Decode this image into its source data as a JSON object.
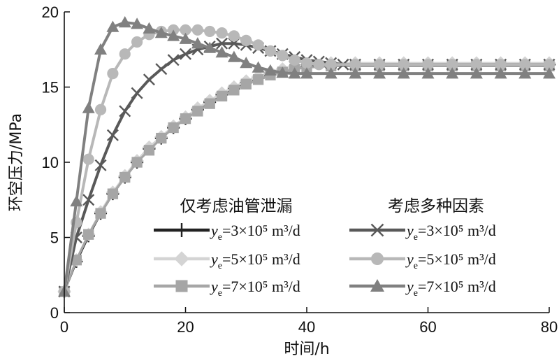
{
  "chart_data": {
    "type": "line",
    "xlabel": "时间/h",
    "ylabel": "环空压力/MPa",
    "xlim": [
      0,
      80
    ],
    "ylim": [
      0,
      20
    ],
    "xticks": [
      0,
      20,
      40,
      60,
      80
    ],
    "yticks": [
      0,
      5,
      10,
      15,
      20
    ],
    "x_tick_labels": [
      "0",
      "20",
      "40",
      "60",
      "80"
    ],
    "y_tick_labels": [
      "0",
      "5",
      "10",
      "15",
      "20"
    ],
    "grid": false,
    "legend": {
      "placement": "bottom-right",
      "group_titles": [
        "仅考虑油管泄漏",
        "考虑多种因素"
      ]
    },
    "series": [
      {
        "key": "s1",
        "name": "ye=3×10⁵ m³/d",
        "name_sym": "y",
        "name_sub": "e",
        "name_rest": "=3×10⁵ m³/d",
        "group": 0,
        "marker": "plus",
        "color": "#222222",
        "markevery": 1,
        "x": [
          0,
          2,
          4,
          6,
          8,
          10,
          12,
          14,
          16,
          18,
          20,
          22,
          24,
          26,
          28,
          30,
          32,
          34,
          36,
          38,
          40,
          44,
          48,
          52,
          56,
          60,
          64,
          68,
          72,
          76,
          80
        ],
        "y": [
          1.4,
          3.4,
          5.1,
          6.6,
          7.9,
          9.0,
          10.0,
          10.9,
          11.6,
          12.3,
          12.9,
          13.5,
          14.0,
          14.5,
          14.9,
          15.3,
          15.6,
          15.9,
          16.1,
          16.3,
          16.4,
          16.5,
          16.5,
          16.5,
          16.5,
          16.5,
          16.5,
          16.5,
          16.5,
          16.5,
          16.5
        ]
      },
      {
        "key": "s2",
        "name": "ye=5×10⁵ m³/d",
        "name_sym": "y",
        "name_sub": "e",
        "name_rest": "=5×10⁵ m³/d",
        "group": 0,
        "marker": "diamond",
        "color": "#d4d4d4",
        "markevery": 1,
        "x": [
          0,
          2,
          4,
          6,
          8,
          10,
          12,
          14,
          16,
          18,
          20,
          22,
          24,
          26,
          28,
          30,
          32,
          34,
          36,
          38,
          40,
          44,
          48,
          52,
          56,
          60,
          64,
          68,
          72,
          76,
          80
        ],
        "y": [
          1.4,
          3.5,
          5.2,
          6.7,
          8.0,
          9.1,
          10.1,
          11.0,
          11.7,
          12.4,
          13.0,
          13.6,
          14.1,
          14.6,
          15.0,
          15.4,
          15.7,
          16.0,
          16.2,
          16.4,
          16.5,
          16.6,
          16.6,
          16.6,
          16.6,
          16.6,
          16.6,
          16.6,
          16.6,
          16.6,
          16.6
        ]
      },
      {
        "key": "s3",
        "name": "ye=7×10⁵ m³/d",
        "name_sym": "y",
        "name_sub": "e",
        "name_rest": "=7×10⁵ m³/d",
        "group": 0,
        "marker": "square",
        "color": "#a6a6a6",
        "markevery": 1,
        "x": [
          0,
          2,
          4,
          6,
          8,
          10,
          12,
          14,
          16,
          18,
          20,
          22,
          24,
          26,
          28,
          30,
          32,
          34,
          36,
          38,
          40,
          44,
          48,
          52,
          56,
          60,
          64,
          68,
          72,
          76,
          80
        ],
        "y": [
          1.4,
          3.5,
          5.2,
          6.6,
          7.9,
          9.0,
          10.0,
          10.8,
          11.6,
          12.3,
          12.9,
          13.4,
          13.9,
          14.4,
          14.8,
          15.2,
          15.5,
          15.8,
          16.0,
          16.2,
          16.3,
          16.4,
          16.4,
          16.4,
          16.4,
          16.4,
          16.4,
          16.4,
          16.4,
          16.4,
          16.4
        ]
      },
      {
        "key": "s4",
        "name": "ye=3×10⁵ m³/d",
        "name_sym": "y",
        "name_sub": "e",
        "name_rest": "=3×10⁵ m³/d",
        "group": 1,
        "marker": "x",
        "color": "#595959",
        "markevery": 1,
        "x": [
          0,
          2,
          4,
          6,
          8,
          10,
          12,
          14,
          16,
          18,
          20,
          22,
          24,
          26,
          28,
          30,
          32,
          34,
          36,
          38,
          40,
          42,
          44,
          46,
          48,
          52,
          56,
          60,
          64,
          68,
          72,
          76,
          80
        ],
        "y": [
          1.4,
          5.0,
          7.5,
          9.8,
          11.8,
          13.4,
          14.6,
          15.5,
          16.2,
          16.8,
          17.2,
          17.5,
          17.7,
          17.9,
          17.9,
          17.8,
          17.6,
          17.4,
          17.2,
          17.0,
          16.8,
          16.7,
          16.6,
          16.5,
          16.5,
          16.5,
          16.5,
          16.5,
          16.5,
          16.5,
          16.5,
          16.5,
          16.5
        ]
      },
      {
        "key": "s5",
        "name": "ye=5×10⁵ m³/d",
        "name_sym": "y",
        "name_sub": "e",
        "name_rest": "=5×10⁵ m³/d",
        "group": 1,
        "marker": "circle",
        "color": "#b8b8b8",
        "markevery": 1,
        "x": [
          0,
          2,
          4,
          6,
          8,
          10,
          12,
          14,
          16,
          18,
          20,
          22,
          24,
          26,
          28,
          30,
          32,
          34,
          36,
          38,
          40,
          42,
          44,
          48,
          52,
          56,
          60,
          64,
          68,
          72,
          76,
          80
        ],
        "y": [
          1.4,
          6.0,
          10.2,
          13.5,
          15.9,
          17.2,
          18.0,
          18.5,
          18.7,
          18.8,
          18.8,
          18.8,
          18.7,
          18.6,
          18.4,
          18.1,
          17.8,
          17.4,
          17.1,
          16.8,
          16.6,
          16.5,
          16.5,
          16.5,
          16.5,
          16.5,
          16.5,
          16.5,
          16.5,
          16.5,
          16.5,
          16.5
        ]
      },
      {
        "key": "s6",
        "name": "ye=7×10⁵ m³/d",
        "name_sym": "y",
        "name_sub": "e",
        "name_rest": "=7×10⁵ m³/d",
        "group": 1,
        "marker": "triangle",
        "color": "#808080",
        "markevery": 1,
        "x": [
          0,
          2,
          4,
          6,
          8,
          10,
          12,
          14,
          16,
          18,
          20,
          22,
          24,
          26,
          28,
          30,
          32,
          34,
          36,
          38,
          40,
          44,
          48,
          52,
          56,
          60,
          64,
          68,
          72,
          76,
          80
        ],
        "y": [
          1.4,
          7.4,
          13.6,
          17.5,
          19.0,
          19.3,
          19.2,
          18.9,
          18.6,
          18.4,
          18.2,
          17.9,
          17.6,
          17.3,
          17.0,
          16.6,
          16.3,
          16.1,
          15.95,
          15.9,
          15.9,
          15.9,
          15.9,
          15.9,
          15.9,
          15.9,
          15.9,
          15.9,
          15.9,
          15.9,
          15.9
        ]
      }
    ]
  }
}
